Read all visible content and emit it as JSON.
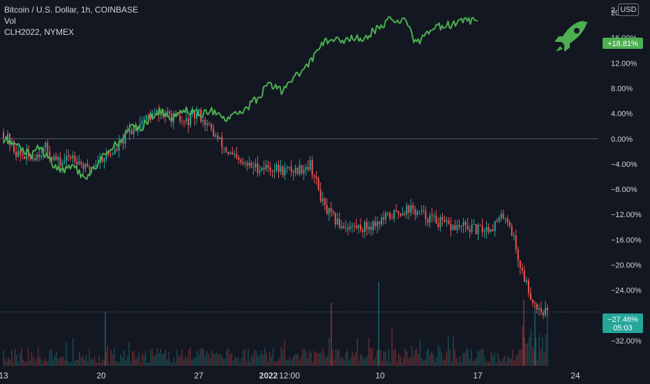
{
  "header": {
    "symbol_line": "Bitcoin / U.S. Dollar, 1h, COINBASE",
    "vol_label": "Vol",
    "compare_symbol": "CLH2022, NYMEX",
    "currency_button": "USD"
  },
  "colors": {
    "background": "#131722",
    "up_candle": "#26a69a",
    "down_candle": "#ef5350",
    "compare_line": "#4caf50",
    "zero_line": "#787b86",
    "axis_text": "#d1d4dc",
    "rocket": "#4caf50"
  },
  "badges": {
    "compare_value": "+18.81%",
    "price_value": "−27.46%",
    "countdown": "05:03"
  },
  "chart_data": {
    "type": "candlestick",
    "y_axis": {
      "unit": "percent",
      "ylim": [
        -36,
        22
      ],
      "ticks": [
        20,
        16,
        12,
        8,
        4,
        0,
        -4,
        -8,
        -12,
        -16,
        -20,
        -24,
        -32
      ],
      "tick_labels": [
        "20.00%",
        "16.00%",
        "12.00%",
        "8.00%",
        "4.00%",
        "0.00%",
        "−4.00%",
        "−8.00%",
        "−12.00%",
        "−16.00%",
        "−20.00%",
        "−24.00%",
        "−32.00%"
      ],
      "top_partial_label": "2"
    },
    "x_axis": {
      "tick_labels": [
        "13",
        "20",
        "27",
        "2022",
        "12:00",
        "10",
        "17",
        "24"
      ],
      "tick_days": [
        0,
        7,
        14,
        19,
        20.5,
        27,
        34,
        41
      ]
    },
    "series": [
      {
        "name": "Bitcoin / U.S. Dollar, 1h, COINBASE",
        "kind": "candles",
        "path": [
          [
            0,
            1
          ],
          [
            1,
            -2.5
          ],
          [
            2,
            -3
          ],
          [
            3,
            -1.5
          ],
          [
            4,
            -4
          ],
          [
            5,
            -2.5
          ],
          [
            6,
            -5
          ],
          [
            7,
            -3
          ],
          [
            8,
            -2
          ],
          [
            9,
            1
          ],
          [
            10,
            3
          ],
          [
            11,
            4
          ],
          [
            12,
            3.5
          ],
          [
            13,
            2.5
          ],
          [
            14,
            4
          ],
          [
            15,
            1
          ],
          [
            16,
            -2
          ],
          [
            17,
            -4
          ],
          [
            18,
            -4.5
          ],
          [
            19,
            -4.5
          ],
          [
            20,
            -5
          ],
          [
            21,
            -5
          ],
          [
            22,
            -4
          ],
          [
            23,
            -11
          ],
          [
            24,
            -13.5
          ],
          [
            25,
            -14
          ],
          [
            26,
            -14
          ],
          [
            27,
            -13
          ],
          [
            28,
            -12
          ],
          [
            29,
            -11
          ],
          [
            30,
            -12
          ],
          [
            31,
            -13
          ],
          [
            32,
            -14
          ],
          [
            33,
            -14
          ],
          [
            34,
            -14.5
          ],
          [
            35,
            -14
          ],
          [
            36,
            -12
          ],
          [
            36.5,
            -15
          ],
          [
            37,
            -20
          ],
          [
            37.5,
            -23
          ],
          [
            38,
            -26
          ],
          [
            38.5,
            -27
          ],
          [
            39,
            -27.5
          ]
        ]
      },
      {
        "name": "CLH2022, NYMEX",
        "kind": "line",
        "path": [
          [
            0,
            0
          ],
          [
            2,
            -2.5
          ],
          [
            2.5,
            -1
          ],
          [
            3,
            -2.5
          ],
          [
            4,
            -5
          ],
          [
            5,
            -4.5
          ],
          [
            6,
            -6.5
          ],
          [
            7,
            -3
          ],
          [
            8,
            -1
          ],
          [
            9,
            1.5
          ],
          [
            10,
            2
          ],
          [
            11,
            4.5
          ],
          [
            12,
            3.5
          ],
          [
            13,
            4.5
          ],
          [
            14,
            4
          ],
          [
            15,
            4.5
          ],
          [
            16,
            3
          ],
          [
            17,
            4
          ],
          [
            18,
            6
          ],
          [
            19,
            8.5
          ],
          [
            20,
            7.5
          ],
          [
            21,
            10
          ],
          [
            22,
            12
          ],
          [
            23,
            15.5
          ],
          [
            24,
            15.5
          ],
          [
            25,
            16
          ],
          [
            26,
            16
          ],
          [
            27,
            18
          ],
          [
            28,
            19
          ],
          [
            29,
            18.5
          ],
          [
            29.5,
            15
          ],
          [
            30,
            16
          ],
          [
            31,
            17.5
          ],
          [
            32,
            18.2
          ],
          [
            33,
            18.5
          ],
          [
            34,
            18.8
          ]
        ]
      }
    ],
    "volume": {
      "label": "Vol",
      "units": "relative"
    },
    "last_values": {
      "price": -27.46,
      "compare": 18.81
    }
  }
}
